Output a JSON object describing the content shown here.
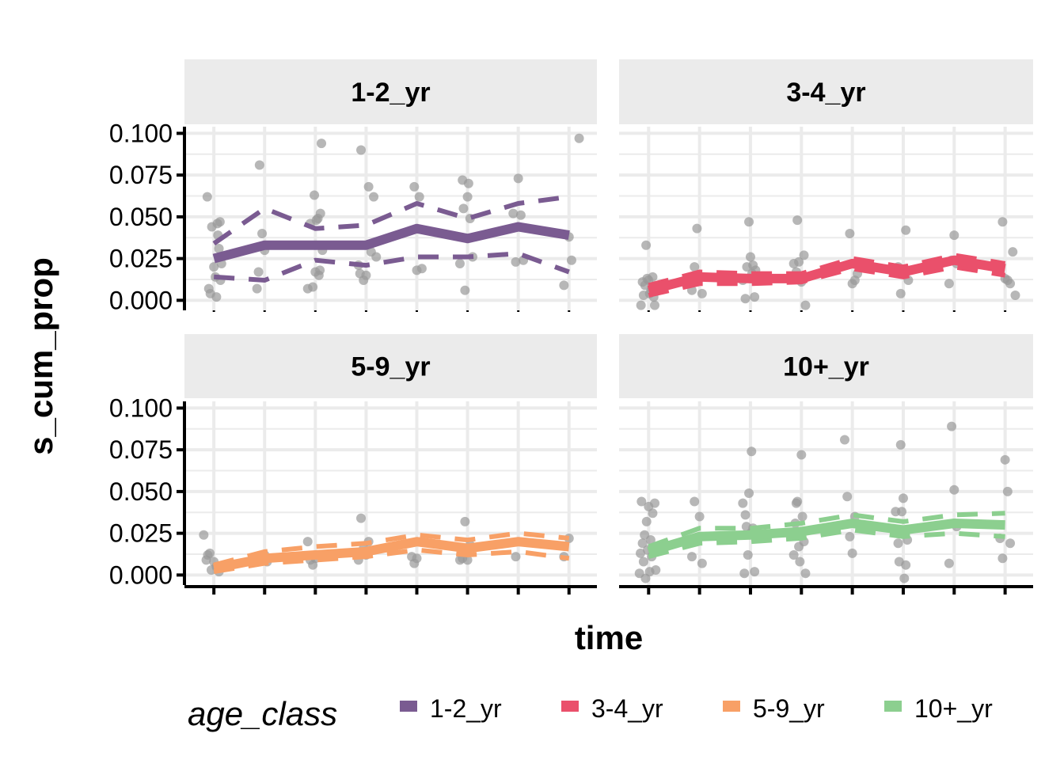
{
  "chart_data": {
    "type": "line",
    "xlabel": "time",
    "ylabel": "s_cum_prop",
    "ylim": [
      -0.006,
      0.104
    ],
    "y_ticks": [
      0.0,
      0.025,
      0.05,
      0.075,
      0.1
    ],
    "y_tick_labels": [
      "0.000",
      "0.025",
      "0.050",
      "0.075",
      "0.100"
    ],
    "x_ticks": [
      1,
      2,
      3,
      4,
      5,
      6,
      7,
      8
    ],
    "xlim": [
      0.42,
      8.55
    ],
    "grid": true,
    "legend": {
      "title": "age_class",
      "position": "bottom",
      "entries": [
        {
          "label": "1-2_yr",
          "color": "#7a5b91"
        },
        {
          "label": "3-4_yr",
          "color": "#ea506b"
        },
        {
          "label": "5-9_yr",
          "color": "#f8a066"
        },
        {
          "label": "10+_yr",
          "color": "#8ccf8f"
        }
      ]
    },
    "point_color": "#999999",
    "panels": [
      {
        "title": "1-2_yr",
        "color": "#7a5b91",
        "mean": [
          0.025,
          0.033,
          0.033,
          0.033,
          0.043,
          0.037,
          0.044,
          0.039
        ],
        "lower": [
          0.014,
          0.012,
          0.024,
          0.021,
          0.026,
          0.026,
          0.028,
          0.017
        ],
        "upper": [
          0.034,
          0.055,
          0.043,
          0.045,
          0.058,
          0.049,
          0.058,
          0.062
        ],
        "points": [
          [
            0.87,
            0.062
          ],
          [
            0.9,
            0.007
          ],
          [
            0.93,
            0.004
          ],
          [
            0.96,
            0.044
          ],
          [
            1.0,
            0.02
          ],
          [
            1.03,
            0.014
          ],
          [
            1.05,
            0.002
          ],
          [
            1.07,
            0.046
          ],
          [
            1.08,
            0.039
          ],
          [
            1.1,
            0.031
          ],
          [
            1.12,
            0.047
          ],
          [
            1.13,
            0.012
          ],
          [
            1.15,
            0.022
          ],
          [
            1.85,
            0.007
          ],
          [
            1.88,
            0.017
          ],
          [
            1.9,
            0.081
          ],
          [
            1.95,
            0.04
          ],
          [
            2.0,
            0.03
          ],
          [
            2.85,
            0.007
          ],
          [
            2.9,
            0.046
          ],
          [
            2.95,
            0.008
          ],
          [
            2.98,
            0.063
          ],
          [
            3.0,
            0.017
          ],
          [
            3.02,
            0.048
          ],
          [
            3.05,
            0.049
          ],
          [
            3.07,
            0.015
          ],
          [
            3.09,
            0.018
          ],
          [
            3.1,
            0.052
          ],
          [
            3.12,
            0.094
          ],
          [
            3.14,
            0.03
          ],
          [
            3.85,
            0.021
          ],
          [
            3.88,
            0.016
          ],
          [
            3.9,
            0.09
          ],
          [
            3.95,
            0.012
          ],
          [
            4.0,
            0.015
          ],
          [
            4.05,
            0.068
          ],
          [
            4.1,
            0.029
          ],
          [
            4.15,
            0.062
          ],
          [
            4.2,
            0.026
          ],
          [
            4.95,
            0.068
          ],
          [
            5.0,
            0.018
          ],
          [
            5.05,
            0.062
          ],
          [
            5.1,
            0.019
          ],
          [
            5.85,
            0.022
          ],
          [
            5.9,
            0.072
          ],
          [
            5.92,
            0.055
          ],
          [
            5.95,
            0.006
          ],
          [
            6.0,
            0.062
          ],
          [
            6.02,
            0.07
          ],
          [
            6.05,
            0.049
          ],
          [
            6.1,
            0.026
          ],
          [
            6.9,
            0.052
          ],
          [
            6.95,
            0.023
          ],
          [
            7.0,
            0.073
          ],
          [
            7.05,
            0.051
          ],
          [
            7.1,
            0.024
          ],
          [
            7.9,
            0.009
          ],
          [
            8.0,
            0.038
          ],
          [
            8.05,
            0.024
          ],
          [
            8.2,
            0.097
          ]
        ]
      },
      {
        "title": "3-4_yr",
        "color": "#ea506b",
        "mean": [
          0.006,
          0.014,
          0.013,
          0.013,
          0.022,
          0.017,
          0.024,
          0.019
        ],
        "lower": [
          0.003,
          0.01,
          0.01,
          0.011,
          0.019,
          0.014,
          0.02,
          0.015
        ],
        "upper": [
          0.009,
          0.017,
          0.016,
          0.016,
          0.025,
          0.02,
          0.027,
          0.022
        ],
        "points": [
          [
            0.85,
            -0.003
          ],
          [
            0.88,
            0.011
          ],
          [
            0.9,
            0.003
          ],
          [
            0.93,
            0.009
          ],
          [
            0.95,
            0.033
          ],
          [
            0.97,
            0.013
          ],
          [
            1.0,
            0.012
          ],
          [
            1.02,
            0.004
          ],
          [
            1.05,
            0.006
          ],
          [
            1.08,
            0.014
          ],
          [
            1.1,
            0.002
          ],
          [
            1.12,
            -0.003
          ],
          [
            1.85,
            0.006
          ],
          [
            1.9,
            0.02
          ],
          [
            1.95,
            0.043
          ],
          [
            2.0,
            0.014
          ],
          [
            2.05,
            0.004
          ],
          [
            2.85,
            0.012
          ],
          [
            2.9,
            0.001
          ],
          [
            2.93,
            0.02
          ],
          [
            2.97,
            0.047
          ],
          [
            3.0,
            0.026
          ],
          [
            3.03,
            0.016
          ],
          [
            3.05,
            0.021
          ],
          [
            3.08,
            0.002
          ],
          [
            3.1,
            0.018
          ],
          [
            3.12,
            0.014
          ],
          [
            3.85,
            0.022
          ],
          [
            3.9,
            0.017
          ],
          [
            3.92,
            0.048
          ],
          [
            3.95,
            0.023
          ],
          [
            4.0,
            0.011
          ],
          [
            4.05,
            0.027
          ],
          [
            4.08,
            -0.003
          ],
          [
            4.95,
            0.04
          ],
          [
            5.0,
            0.01
          ],
          [
            5.05,
            0.012
          ],
          [
            5.1,
            0.016
          ],
          [
            5.9,
            0.02
          ],
          [
            5.95,
            0.004
          ],
          [
            6.0,
            0.018
          ],
          [
            6.05,
            0.042
          ],
          [
            6.1,
            0.012
          ],
          [
            6.9,
            0.01
          ],
          [
            6.95,
            0.024
          ],
          [
            7.0,
            0.039
          ],
          [
            7.05,
            0.022
          ],
          [
            7.95,
            0.047
          ],
          [
            8.0,
            0.013
          ],
          [
            8.05,
            0.012
          ],
          [
            8.1,
            0.01
          ],
          [
            8.15,
            0.029
          ],
          [
            8.2,
            0.003
          ]
        ]
      },
      {
        "title": "5-9_yr",
        "color": "#f8a066",
        "mean": [
          0.004,
          0.01,
          0.012,
          0.014,
          0.02,
          0.016,
          0.02,
          0.017
        ],
        "lower": [
          0.002,
          0.007,
          0.009,
          0.011,
          0.015,
          0.012,
          0.014,
          0.01
        ],
        "upper": [
          0.006,
          0.014,
          0.017,
          0.019,
          0.024,
          0.021,
          0.025,
          0.022
        ],
        "points": [
          [
            0.8,
            0.024
          ],
          [
            0.85,
            0.009
          ],
          [
            0.88,
            0.012
          ],
          [
            0.92,
            0.013
          ],
          [
            0.95,
            0.003
          ],
          [
            1.0,
            0.008
          ],
          [
            1.05,
            0.005
          ],
          [
            1.1,
            0.002
          ],
          [
            2.0,
            0.012
          ],
          [
            2.05,
            0.008
          ],
          [
            2.85,
            0.02
          ],
          [
            2.9,
            0.009
          ],
          [
            2.95,
            0.006
          ],
          [
            3.0,
            0.01
          ],
          [
            3.85,
            0.009
          ],
          [
            3.9,
            0.034
          ],
          [
            3.95,
            0.016
          ],
          [
            4.0,
            0.012
          ],
          [
            4.05,
            0.02
          ],
          [
            4.9,
            0.011
          ],
          [
            4.95,
            0.007
          ],
          [
            5.0,
            0.01
          ],
          [
            5.85,
            0.009
          ],
          [
            5.9,
            0.01
          ],
          [
            5.95,
            0.032
          ],
          [
            6.0,
            0.009
          ],
          [
            6.05,
            0.018
          ],
          [
            6.95,
            0.011
          ],
          [
            7.9,
            0.011
          ],
          [
            8.0,
            0.022
          ]
        ]
      },
      {
        "title": "10+_yr",
        "color": "#8ccf8f",
        "mean": [
          0.014,
          0.023,
          0.024,
          0.026,
          0.031,
          0.027,
          0.031,
          0.03
        ],
        "lower": [
          0.011,
          0.019,
          0.02,
          0.022,
          0.027,
          0.023,
          0.025,
          0.023
        ],
        "upper": [
          0.017,
          0.028,
          0.028,
          0.031,
          0.036,
          0.032,
          0.036,
          0.037
        ],
        "points": [
          [
            0.82,
            0.001
          ],
          [
            0.84,
            0.013
          ],
          [
            0.86,
            0.044
          ],
          [
            0.88,
            0.019
          ],
          [
            0.9,
            0.008
          ],
          [
            0.92,
            0.024
          ],
          [
            0.94,
            -0.002
          ],
          [
            0.96,
            0.032
          ],
          [
            0.98,
            0.015
          ],
          [
            1.0,
            0.041
          ],
          [
            1.02,
            0.002
          ],
          [
            1.04,
            0.021
          ],
          [
            1.06,
            0.011
          ],
          [
            1.08,
            0.037
          ],
          [
            1.1,
            0.016
          ],
          [
            1.12,
            0.043
          ],
          [
            1.14,
            0.003
          ],
          [
            1.85,
            0.011
          ],
          [
            1.9,
            0.044
          ],
          [
            1.95,
            0.022
          ],
          [
            2.0,
            0.035
          ],
          [
            2.05,
            0.007
          ],
          [
            2.85,
            0.043
          ],
          [
            2.88,
            0.001
          ],
          [
            2.9,
            0.036
          ],
          [
            2.92,
            0.029
          ],
          [
            2.95,
            0.012
          ],
          [
            2.97,
            0.049
          ],
          [
            3.0,
            0.025
          ],
          [
            3.02,
            0.074
          ],
          [
            3.05,
            0.028
          ],
          [
            3.08,
            0.002
          ],
          [
            3.85,
            0.012
          ],
          [
            3.88,
            0.031
          ],
          [
            3.9,
            0.043
          ],
          [
            3.92,
            0.044
          ],
          [
            3.95,
            0.017
          ],
          [
            3.97,
            0.008
          ],
          [
            4.0,
            0.072
          ],
          [
            4.02,
            0.035
          ],
          [
            4.05,
            0.02
          ],
          [
            4.08,
            0.001
          ],
          [
            4.85,
            0.081
          ],
          [
            4.9,
            0.047
          ],
          [
            4.95,
            0.023
          ],
          [
            5.0,
            0.013
          ],
          [
            5.05,
            0.035
          ],
          [
            5.85,
            0.038
          ],
          [
            5.9,
            0.019
          ],
          [
            5.92,
            0.008
          ],
          [
            5.95,
            0.078
          ],
          [
            5.97,
            0.038
          ],
          [
            6.0,
            0.046
          ],
          [
            6.02,
            -0.002
          ],
          [
            6.05,
            0.006
          ],
          [
            6.08,
            0.021
          ],
          [
            6.9,
            0.007
          ],
          [
            6.95,
            0.089
          ],
          [
            7.0,
            0.051
          ],
          [
            7.05,
            0.029
          ],
          [
            7.9,
            0.022
          ],
          [
            7.95,
            0.01
          ],
          [
            8.0,
            0.069
          ],
          [
            8.05,
            0.05
          ],
          [
            8.1,
            0.019
          ]
        ]
      }
    ]
  }
}
